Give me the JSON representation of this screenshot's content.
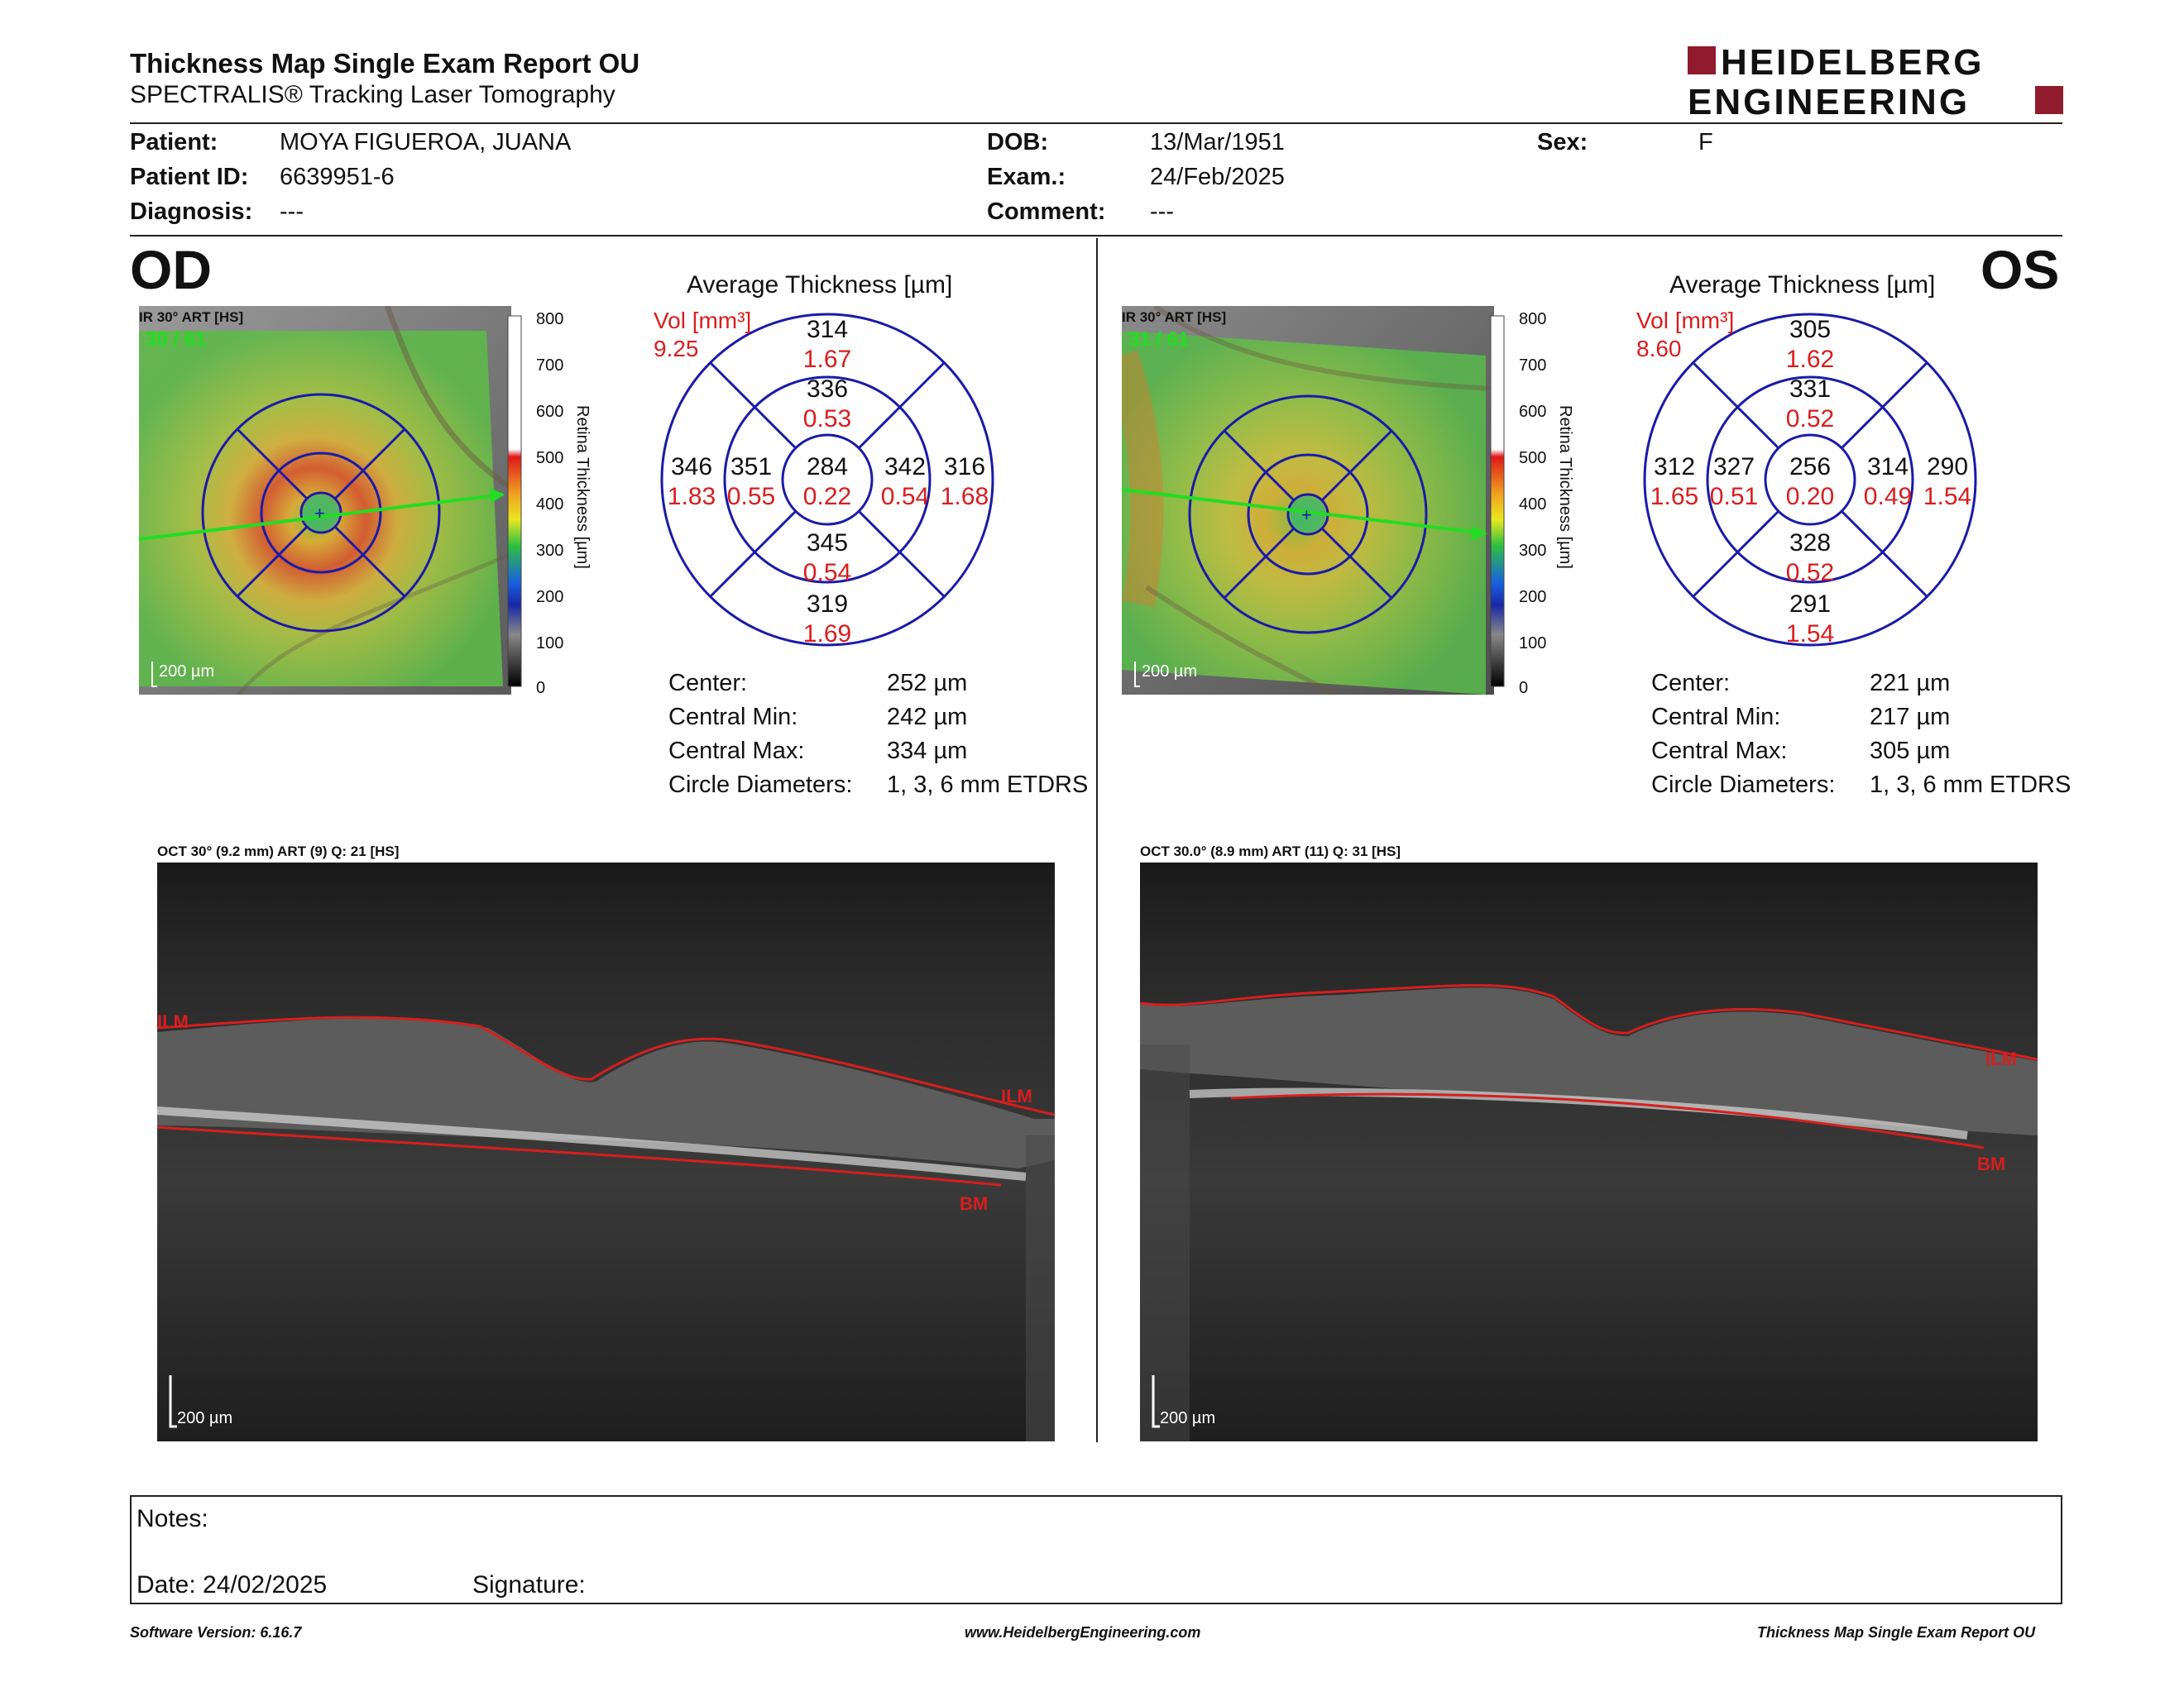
{
  "header": {
    "title": "Thickness Map Single Exam Report OU",
    "subtitle": "SPECTRALIS® Tracking Laser Tomography",
    "logo_line1": "HEIDELBERG",
    "logo_line2": "ENGINEERING"
  },
  "patient": {
    "patient_label": "Patient:",
    "patient_value": "MOYA FIGUEROA, JUANA",
    "id_label": "Patient ID:",
    "id_value": "6639951-6",
    "diagnosis_label": "Diagnosis:",
    "diagnosis_value": "---",
    "dob_label": "DOB:",
    "dob_value": "13/Mar/1951",
    "exam_label": "Exam.:",
    "exam_value": "24/Feb/2025",
    "comment_label": "Comment:",
    "comment_value": "---",
    "sex_label": "Sex:",
    "sex_value": "F"
  },
  "od": {
    "eye": "OD",
    "ir_label": "IR 30° ART [HS]",
    "ir_frames": "30 / 61",
    "scale_label": "200 µm",
    "colorbar_title": "Retina  Thickness [µm]",
    "colorbar_ticks": [
      "800",
      "700",
      "600",
      "500",
      "400",
      "300",
      "200",
      "100",
      "0"
    ],
    "avg_title": "Average Thickness [µm]",
    "vol_label": "Vol [mm³]",
    "vol_value": "9.25",
    "grid": {
      "outer_sup": "314",
      "outer_sup_vol": "1.67",
      "inner_sup": "336",
      "inner_sup_vol": "0.53",
      "outer_nas": "346",
      "outer_nas_vol": "1.83",
      "inner_nas": "351",
      "inner_nas_vol": "0.55",
      "center": "284",
      "center_vol": "0.22",
      "inner_tmp": "342",
      "inner_tmp_vol": "0.54",
      "outer_tmp": "316",
      "outer_tmp_vol": "1.68",
      "inner_inf": "345",
      "inner_inf_vol": "0.54",
      "outer_inf": "319",
      "outer_inf_vol": "1.69"
    },
    "stats": {
      "center_label": "Center:",
      "center_value": "252 µm",
      "min_label": "Central Min:",
      "min_value": "242 µm",
      "max_label": "Central Max:",
      "max_value": "334 µm",
      "diam_label": "Circle Diameters:",
      "diam_value": "1, 3, 6 mm ETDRS"
    },
    "oct_label": "OCT 30° (9.2 mm) ART (9) Q: 21 [HS]",
    "oct_ilm": "ILM",
    "oct_ilm_cut": "ILM",
    "oct_bm": "BM",
    "oct_scale": "200 µm"
  },
  "os": {
    "eye": "OS",
    "ir_label": "IR 30° ART [HS]",
    "ir_frames": "31 / 61",
    "scale_label": "200 µm",
    "colorbar_title": "Retina  Thickness [µm]",
    "colorbar_ticks": [
      "800",
      "700",
      "600",
      "500",
      "400",
      "300",
      "200",
      "100",
      "0"
    ],
    "avg_title": "Average Thickness [µm]",
    "vol_label": "Vol [mm³]",
    "vol_value": "8.60",
    "grid": {
      "outer_sup": "305",
      "outer_sup_vol": "1.62",
      "inner_sup": "331",
      "inner_sup_vol": "0.52",
      "outer_tmp": "312",
      "outer_tmp_vol": "1.65",
      "inner_tmp": "327",
      "inner_tmp_vol": "0.51",
      "center": "256",
      "center_vol": "0.20",
      "inner_nas": "314",
      "inner_nas_vol": "0.49",
      "outer_nas": "290",
      "outer_nas_vol": "1.54",
      "inner_inf": "328",
      "inner_inf_vol": "0.52",
      "outer_inf": "291",
      "outer_inf_vol": "1.54"
    },
    "stats": {
      "center_label": "Center:",
      "center_value": "221 µm",
      "min_label": "Central Min:",
      "min_value": "217 µm",
      "max_label": "Central Max:",
      "max_value": "305 µm",
      "diam_label": "Circle Diameters:",
      "diam_value": "1, 3, 6 mm ETDRS"
    },
    "oct_label": "OCT 30.0° (8.9 mm) ART (11) Q: 31 [HS]",
    "oct_ilm": "ILM",
    "oct_bm": "BM",
    "oct_scale": "200 µm"
  },
  "notes": {
    "notes_label": "Notes:",
    "date_label": "Date: 24/02/2025",
    "signature_label": "Signature:"
  },
  "footer": {
    "software": "Software Version: 6.16.7",
    "website": "www.HeidelbergEngineering.com",
    "report": "Thickness Map Single Exam Report OU"
  },
  "colors": {
    "red": "#d81e1e",
    "grid_blue": "#1a1aa8",
    "logo_red": "#8f1b2c",
    "map_green": "#7dc242",
    "scan_green": "#22dd22"
  }
}
